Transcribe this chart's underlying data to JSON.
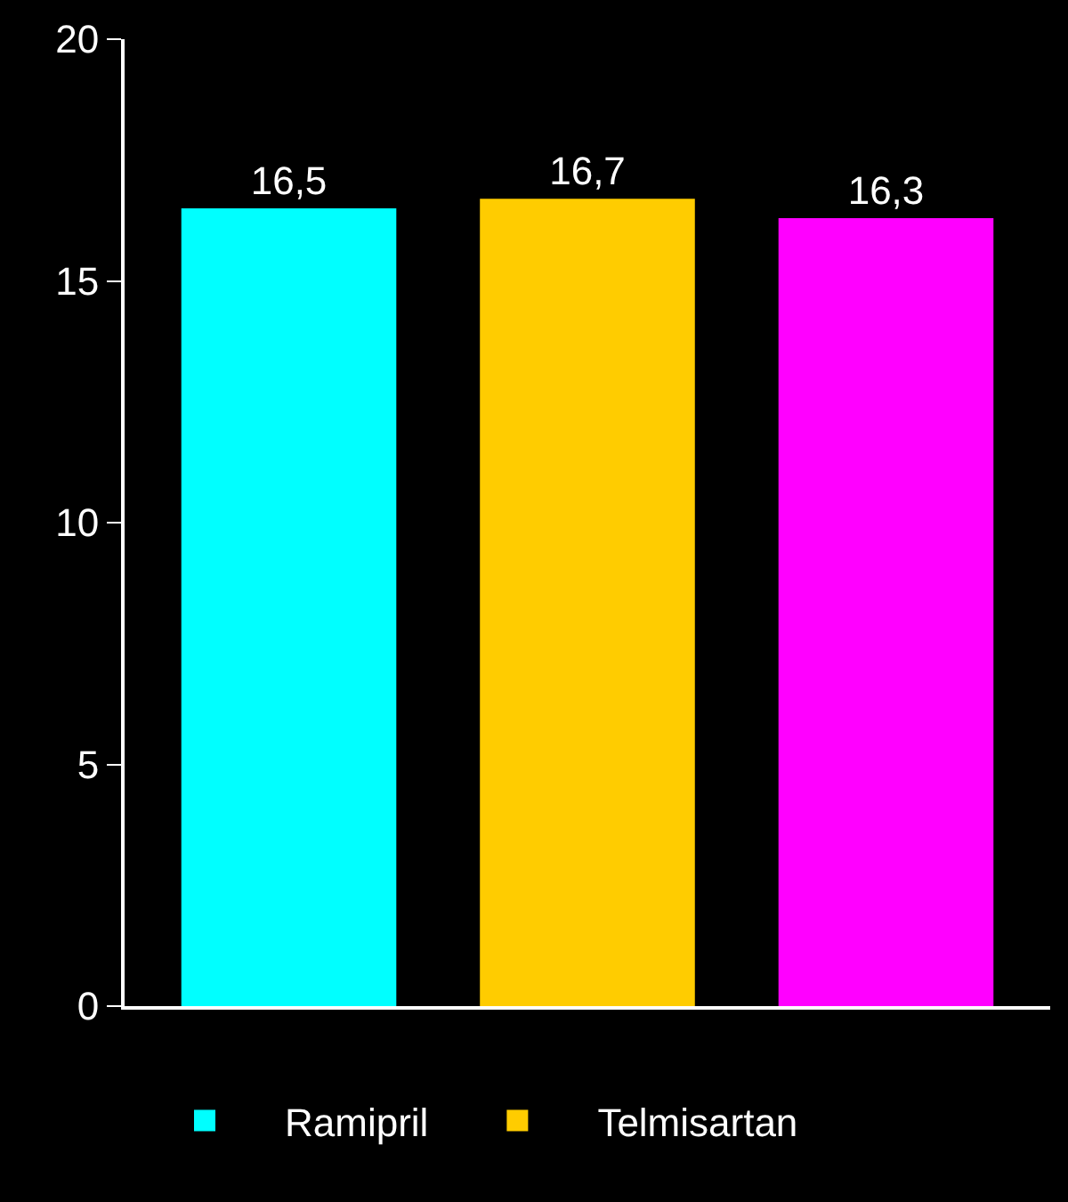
{
  "chart_data": {
    "type": "bar",
    "categories": [
      null,
      null,
      null
    ],
    "series": [
      {
        "name": "Ramipril",
        "color": "#00ffff",
        "values": [
          16.5,
          null,
          null
        ],
        "value_labels": [
          "16,5",
          null,
          null
        ]
      },
      {
        "name": "Telmisartan",
        "color": "#ffcc00",
        "values": [
          null,
          16.7,
          null
        ],
        "value_labels": [
          null,
          "16,7",
          null
        ]
      },
      {
        "color": "#ff00ff",
        "values": [
          null,
          null,
          16.3
        ],
        "value_labels": [
          null,
          null,
          "16,3"
        ]
      }
    ],
    "ylim": [
      0,
      20
    ],
    "yticks": [
      0,
      5,
      10,
      15,
      20
    ],
    "grid": false,
    "legend": "bottom"
  }
}
